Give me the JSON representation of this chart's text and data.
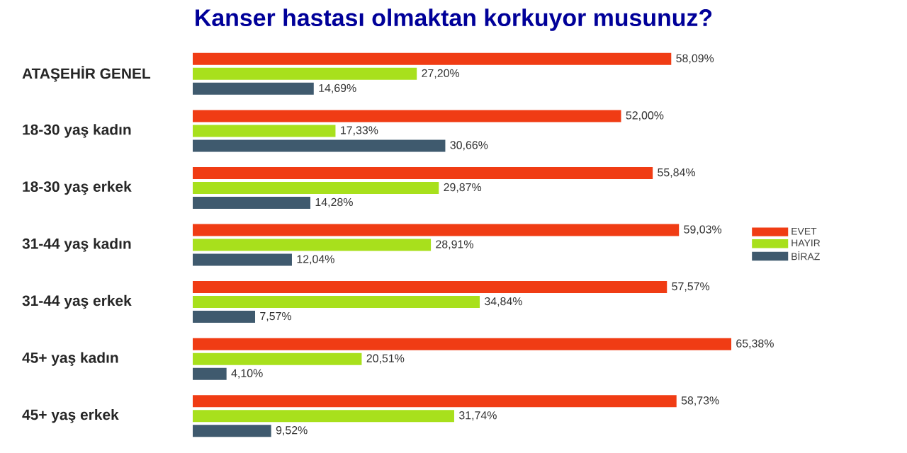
{
  "chart_data": {
    "type": "bar",
    "orientation": "horizontal",
    "title": "Kanser hastası olmaktan korkuyor musunuz?",
    "categories": [
      "ATAŞEHİR GENEL",
      "18-30 yaş kadın",
      "18-30 yaş erkek",
      "31-44 yaş kadın",
      "31-44 yaş erkek",
      "45+ yaş kadın",
      "45+ yaş erkek"
    ],
    "series": [
      {
        "name": "EVET",
        "color": "#f03c14",
        "values": [
          58.09,
          52.0,
          55.84,
          59.03,
          57.57,
          65.38,
          58.73
        ],
        "value_labels": [
          "58,09%",
          "52,00%",
          "55,84%",
          "59,03%",
          "57,57%",
          "65,38%",
          "58,73%"
        ]
      },
      {
        "name": "HAYIR",
        "color": "#a8e01c",
        "values": [
          27.2,
          17.33,
          29.87,
          28.91,
          34.84,
          20.51,
          31.74
        ],
        "value_labels": [
          "27,20%",
          "17,33%",
          "29,87%",
          "28,91%",
          "34,84%",
          "20,51%",
          "31,74%"
        ]
      },
      {
        "name": "BİRAZ",
        "color": "#3f5a6e",
        "values": [
          14.69,
          30.66,
          14.28,
          12.04,
          7.57,
          4.1,
          9.52
        ],
        "value_labels": [
          "14,69%",
          "30,66%",
          "14,28%",
          "12,04%",
          "7,57%",
          "4,10%",
          "9,52%"
        ]
      }
    ],
    "legend": "right"
  }
}
